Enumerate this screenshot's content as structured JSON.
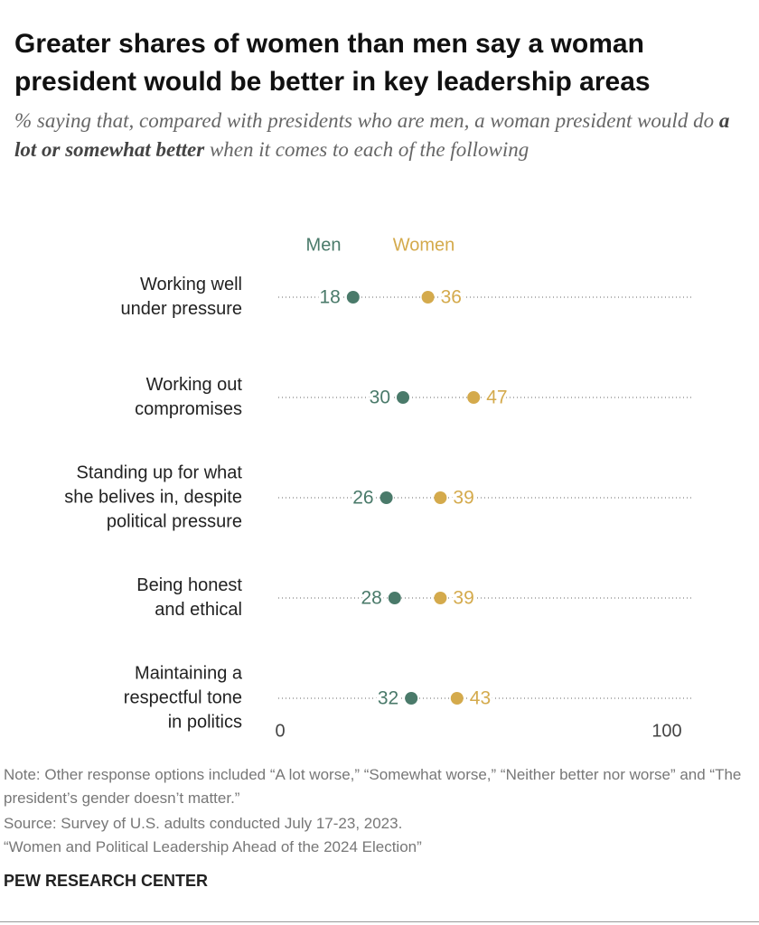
{
  "chart_data": {
    "type": "dot",
    "title": "Greater shares of women than men say a woman president would be better in key leadership areas",
    "subtitle": [
      "% saying that, compared with presidents who are men, a woman president would do ",
      "a lot or somewhat better",
      " when it comes to each of the following"
    ],
    "categories": [
      [
        "Working well",
        "under pressure"
      ],
      [
        "Working out",
        "compromises"
      ],
      [
        "Standing up for what",
        "she belives in, despite",
        "political pressure"
      ],
      [
        "Being honest",
        "and ethical"
      ],
      [
        "Maintaining a",
        "respectful tone",
        "in politics"
      ]
    ],
    "series": [
      {
        "name": "Men",
        "color": "#4a7a6a",
        "values": [
          18,
          30,
          26,
          28,
          32
        ]
      },
      {
        "name": "Women",
        "color": "#d4aa4c",
        "values": [
          36,
          47,
          39,
          39,
          43
        ]
      }
    ],
    "xlim": [
      0,
      100
    ],
    "xticks": [
      0,
      100
    ],
    "note": "Note: Other response options included “A lot worse,” “Somewhat worse,” “Neither better nor worse” and “The president’s gender doesn’t matter.”",
    "source": "Source: Survey of U.S. adults conducted July 17-23, 2023.",
    "report": "“Women and Political Leadership Ahead of the 2024 Election”",
    "brand": "PEW RESEARCH CENTER"
  }
}
